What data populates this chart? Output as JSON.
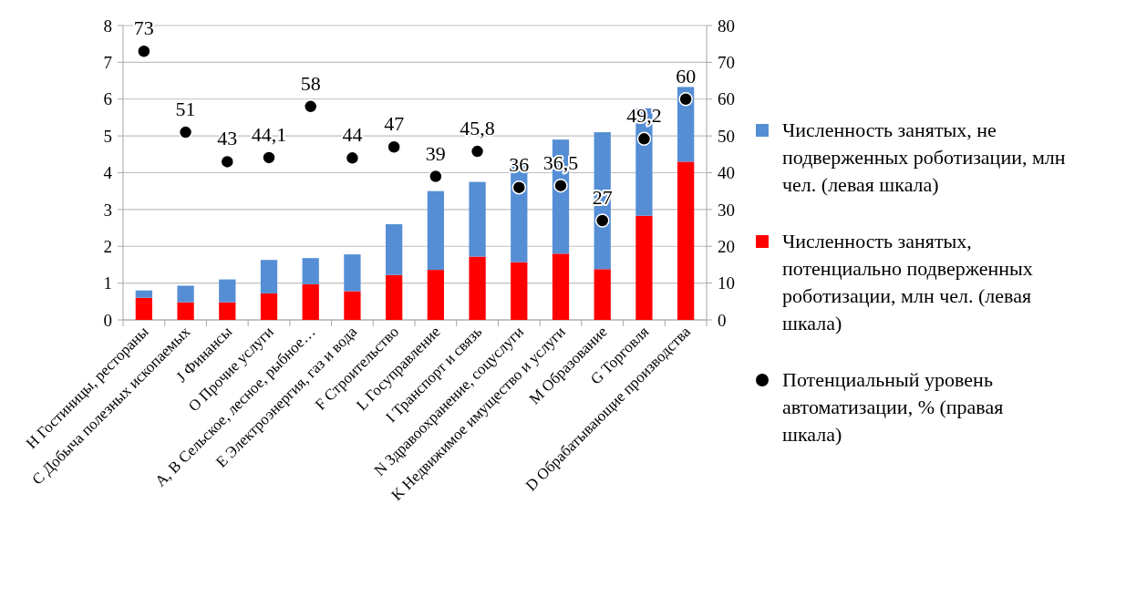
{
  "chart_data": {
    "type": "bar",
    "stacked": true,
    "categories": [
      "H Гостиницы, рестораны",
      "C Добыча полезных ископаемых",
      "J Финансы",
      "O Прочие услуги",
      "A, B Сельское, лесное, рыбное…",
      "E Электроэнергия,  газ и вода",
      "F Строительство",
      "L Госуправление",
      "I Транспорт и связь",
      "N Здравоохранение,  соцуслуги",
      "K Недвижимое имущество и услуги",
      "M Образование",
      "G Торговля",
      "D Обрабатывающие  производства"
    ],
    "series": [
      {
        "name": "Численность занятых, потенциально подверженных роботизации, млн чел. (левая шкала)",
        "color": "#ff0000",
        "values": [
          0.6,
          0.48,
          0.48,
          0.72,
          0.97,
          0.78,
          1.22,
          1.36,
          1.72,
          1.57,
          1.8,
          1.38,
          2.83,
          4.3
        ]
      },
      {
        "name": "Численность занятых, не подверженных роботизации, млн чел. (левая шкала)",
        "color": "#558ed5",
        "values": [
          0.2,
          0.45,
          0.62,
          0.91,
          0.71,
          1.0,
          1.38,
          2.14,
          2.03,
          2.78,
          3.1,
          3.72,
          2.92,
          2.03
        ]
      },
      {
        "name": "Потенциальный уровень автоматизации, % (правая шкала)",
        "type": "scatter",
        "axis": "y2",
        "color": "#000000",
        "marker": "circle",
        "values": [
          73,
          51,
          43,
          44.1,
          58,
          44,
          47,
          39,
          45.8,
          36,
          36.5,
          27,
          49.2,
          60
        ],
        "value_labels": [
          "73",
          "51",
          "43",
          "44,1",
          "58",
          "44",
          "47",
          "39",
          "45,8",
          "36",
          "36,5",
          "27",
          "49,2",
          "60"
        ]
      }
    ],
    "ylim": [
      0,
      8
    ],
    "yticks": [
      0,
      1,
      2,
      3,
      4,
      5,
      6,
      7,
      8
    ],
    "y2lim": [
      0,
      80
    ],
    "y2ticks": [
      0,
      10,
      20,
      30,
      40,
      50,
      60,
      70,
      80
    ],
    "grid": "y",
    "legend": "right"
  }
}
